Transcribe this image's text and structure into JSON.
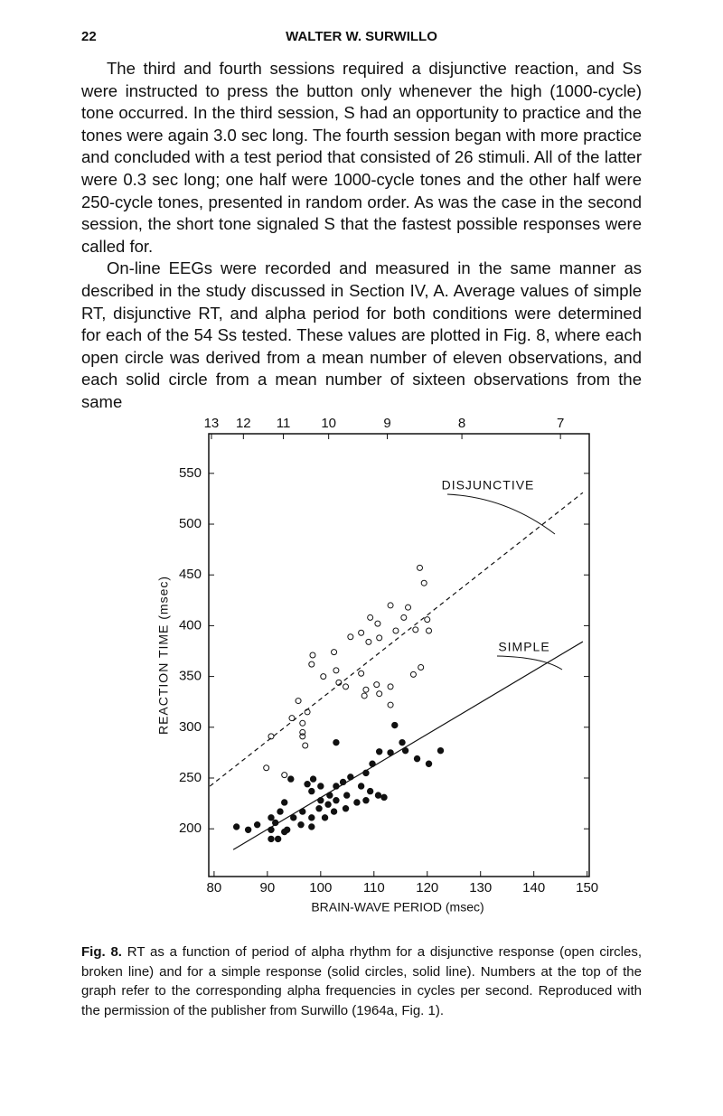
{
  "header": {
    "page_number": "22",
    "running_title": "WALTER W. SURWILLO"
  },
  "paragraphs": [
    "The third and fourth sessions required a disjunctive reaction, and Ss were instructed to press the button only whenever the high (1000-cycle) tone occurred. In the third session, S had an opportunity to practice and the tones were again 3.0 sec long. The fourth session began with more practice and concluded with a test period that consisted of 26 stimuli. All of the latter were 0.3 sec long; one half were 1000-cycle tones and the other half were 250-cycle tones, presented in random order. As was the case in the second session, the short tone signaled S that the fastest possible responses were called for.",
    "On-line EEGs were recorded and measured in the same manner as described in the study discussed in Section IV, A. Average values of simple RT, disjunctive RT, and alpha period for both conditions were determined for each of the 54 Ss tested. These values are plotted in Fig. 8, where each open circle was derived from a mean number of eleven observations, and each solid circle from a mean number of sixteen observations from the same"
  ],
  "chart_data": {
    "type": "scatter",
    "x_label": "BRAIN-WAVE PERIOD (msec)",
    "y_label": "REACTION TIME (msec)",
    "xlim": [
      79,
      150.4
    ],
    "ylim": [
      153,
      589
    ],
    "xticks": [
      80,
      90,
      100,
      110,
      120,
      130,
      140,
      150
    ],
    "yticks": [
      200,
      250,
      300,
      350,
      400,
      450,
      500,
      550
    ],
    "x2ticks": [
      {
        "value": 79.5,
        "label": "13"
      },
      {
        "value": 85.5,
        "label": "12"
      },
      {
        "value": 93,
        "label": "11"
      },
      {
        "value": 101.5,
        "label": "10"
      },
      {
        "value": 112.5,
        "label": "9"
      },
      {
        "value": 126.5,
        "label": "8"
      },
      {
        "value": 145,
        "label": "7"
      }
    ],
    "series": [
      {
        "name": "DISJUNCTIVE",
        "marker": "open",
        "line": "dashed",
        "color": "#111111",
        "x": [
          118.6,
          119.4,
          109.3,
          113.1,
          116.4,
          107.6,
          110.7,
          114.1,
          115.6,
          105.6,
          109,
          111,
          120,
          117.8,
          120.3,
          98.5,
          102.5,
          98.3,
          100.5,
          102.9,
          103.4,
          107.6,
          104.7,
          108.5,
          108.2,
          110.5,
          111,
          113.1,
          117.4,
          113.1,
          95.8,
          97.5,
          94.6,
          90.7,
          96.6,
          96.6,
          96.6,
          97.1,
          89.8,
          93.2,
          118.8
        ],
        "values": [
          457,
          442,
          408,
          420,
          418,
          393,
          402,
          395,
          408,
          389,
          384,
          388,
          406,
          396,
          395,
          371,
          374,
          362,
          350,
          356,
          344,
          353,
          340,
          337,
          331,
          342,
          333,
          322,
          352,
          340,
          326,
          315,
          309,
          291,
          304,
          295,
          291,
          282,
          260,
          253,
          359
        ],
        "fit": {
          "x": [
            79.2,
            149.2
          ],
          "values": [
            241.9,
            531
          ]
        }
      },
      {
        "name": "SIMPLE",
        "marker": "solid",
        "line": "solid",
        "color": "#111111",
        "x": [
          113.9,
          102.9,
          111,
          109.7,
          108.5,
          113.1,
          115.3,
          118.1,
          120.3,
          115.9,
          122.5,
          94.4,
          98.6,
          97.5,
          98.3,
          100,
          101.7,
          102.9,
          104.2,
          105.6,
          107.6,
          109.3,
          108.5,
          104.9,
          101.4,
          99.7,
          98.3,
          96.6,
          94.9,
          93.2,
          92.4,
          91.5,
          90.7,
          88.1,
          86.4,
          84.2,
          90.7,
          93.7,
          96.3,
          98.3,
          100.8,
          102.5,
          104.7,
          106.8,
          111.9,
          90.7,
          92,
          93.2,
          100,
          102.9,
          110.8
        ],
        "values": [
          302,
          285,
          276,
          264,
          255,
          275,
          285,
          269,
          264,
          277,
          277,
          249,
          249,
          244,
          237,
          242,
          233,
          242,
          246,
          251,
          242,
          237,
          228,
          233,
          224,
          220,
          211,
          217,
          211,
          226,
          217,
          206,
          199,
          204,
          199,
          202,
          211,
          199,
          204,
          202,
          211,
          217,
          220,
          226,
          231,
          190,
          190,
          197,
          228,
          228,
          233
        ],
        "fit": {
          "x": [
            83.6,
            149.2
          ],
          "values": [
            179.5,
            384.3
          ]
        }
      }
    ]
  },
  "caption": {
    "label": "Fig. 8.",
    "text": "RT as a function of period of alpha rhythm for a disjunctive response (open circles, broken line) and for a simple response (solid circles, solid line). Numbers at the top of the graph refer to the corresponding alpha frequencies in cycles per second. Reproduced with the permission of the publisher from Surwillo (1964a, Fig. 1)."
  }
}
